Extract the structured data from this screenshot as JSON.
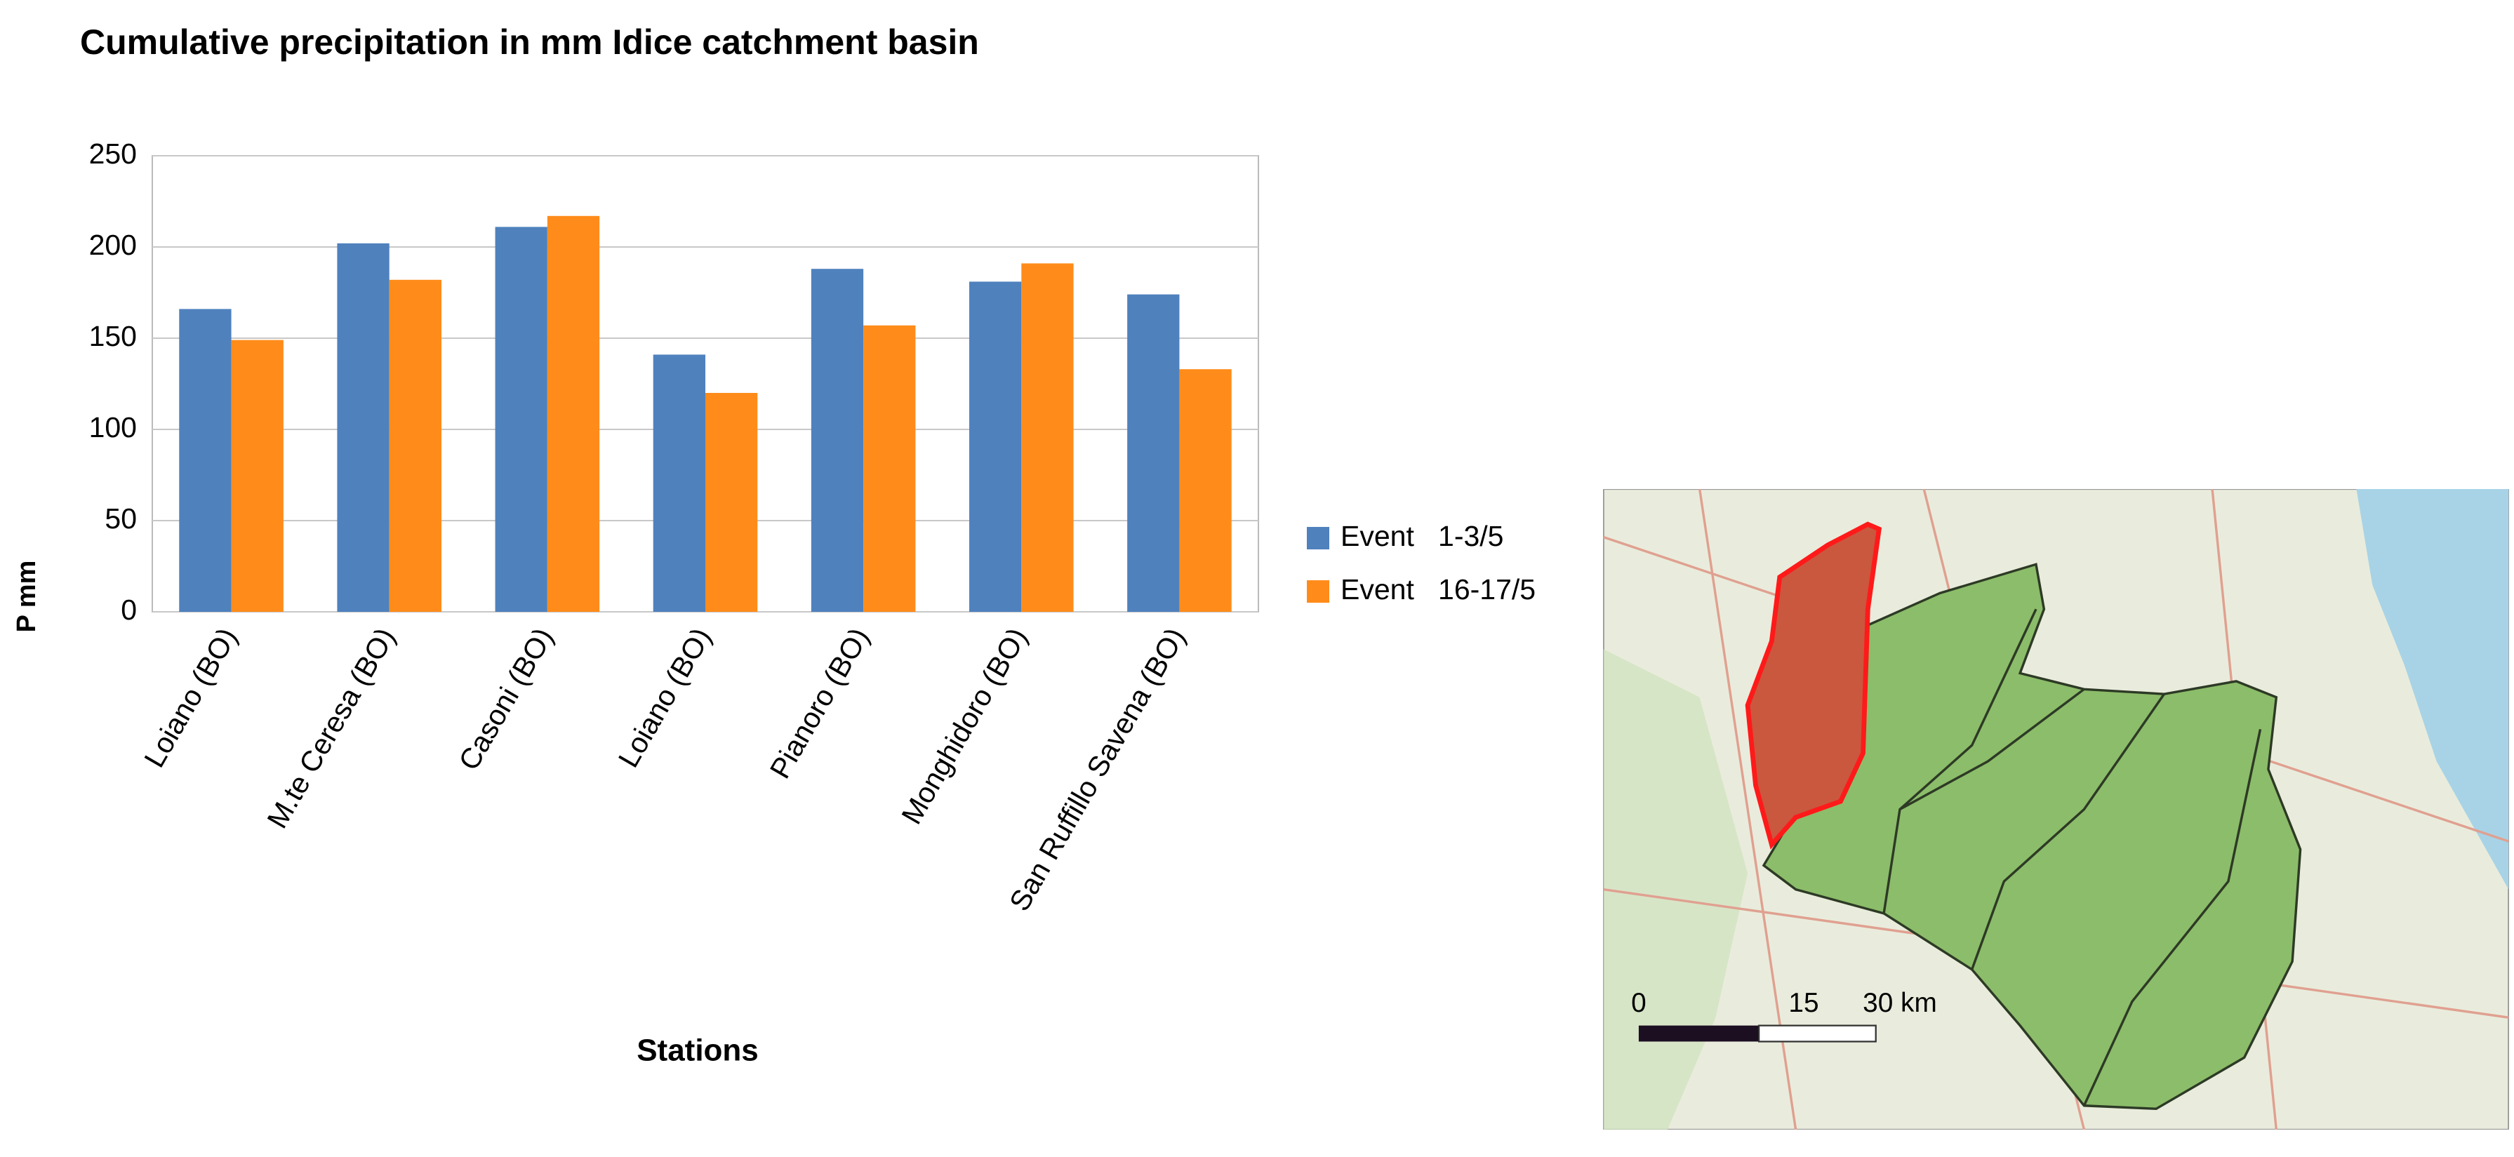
{
  "chart_data": {
    "type": "bar",
    "title": "Cumulative precipitation in mm Idice catchment basin",
    "x_label": "Stations",
    "y_label": "P mm",
    "categories": [
      "Loiano (BO)",
      "M.te Ceresa (BO)",
      "Casoni (BO)",
      "Loiano (BO)",
      "Pianoro (BO)",
      "Monghidoro (BO)",
      "San Ruffillo Savena (BO)"
    ],
    "series": [
      {
        "name": "Event   1-3/5",
        "color": "#4f81bd",
        "values": [
          166,
          202,
          211,
          141,
          188,
          181,
          174
        ]
      },
      {
        "name": "Event   16-17/5",
        "color": "#ff8c1a",
        "values": [
          149,
          182,
          217,
          120,
          157,
          191,
          133
        ]
      }
    ],
    "ylim": [
      0,
      250
    ],
    "yticks": [
      0,
      50,
      100,
      150,
      200,
      250
    ],
    "grid": true,
    "legend": "right"
  },
  "map": {
    "scale_labels": [
      "0",
      "15",
      "30 km"
    ]
  }
}
